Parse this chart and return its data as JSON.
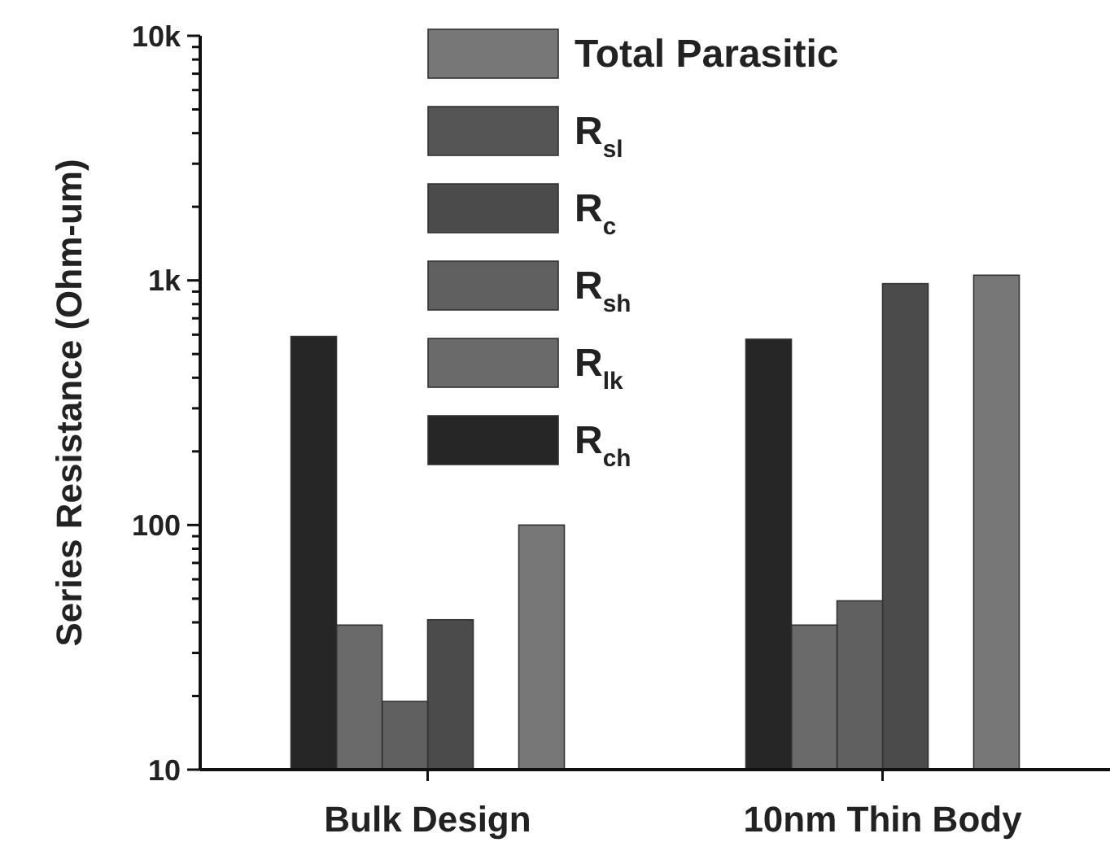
{
  "chart_data": {
    "type": "bar",
    "ylabel": "Series Resistance (Ohm-um)",
    "categories": [
      "Bulk Design",
      "10nm Thin Body"
    ],
    "series": [
      {
        "name": "Total Parasitic",
        "color": "#777777",
        "values": [
          100,
          1050
        ]
      },
      {
        "name": "R$_{sl}$",
        "color": "#555555",
        "values": [
          null,
          null
        ]
      },
      {
        "name": "R$_{c}$",
        "color": "#4b4b4b",
        "values": [
          41,
          970
        ]
      },
      {
        "name": "R$_{sh}$",
        "color": "#606060",
        "values": [
          19,
          49
        ]
      },
      {
        "name": "R$_{lk}$",
        "color": "#6a6a6a",
        "values": [
          39,
          39
        ]
      },
      {
        "name": "R$_{ch}$",
        "color": "#262626",
        "values": [
          590,
          575
        ]
      }
    ],
    "log": true,
    "ylim": [
      10,
      10000
    ],
    "yticks": [
      10,
      {
        "value": 20,
        "label": null
      },
      {
        "value": 30,
        "label": null
      },
      {
        "value": 40,
        "label": null
      },
      {
        "value": 50,
        "label": null
      },
      {
        "value": 60,
        "label": null
      },
      {
        "value": 70,
        "label": null
      },
      {
        "value": 80,
        "label": null
      },
      {
        "value": 90,
        "label": null
      },
      100,
      {
        "value": 200,
        "label": null
      },
      {
        "value": 300,
        "label": null
      },
      {
        "value": 400,
        "label": null
      },
      {
        "value": 500,
        "label": null
      },
      {
        "value": 600,
        "label": null
      },
      {
        "value": 700,
        "label": null
      },
      {
        "value": 800,
        "label": null
      },
      {
        "value": 900,
        "label": null
      },
      {
        "value": 1000,
        "label": "1k"
      },
      {
        "value": 2000,
        "label": null
      },
      {
        "value": 3000,
        "label": null
      },
      {
        "value": 4000,
        "label": null
      },
      {
        "value": 5000,
        "label": null
      },
      {
        "value": 6000,
        "label": null
      },
      {
        "value": 7000,
        "label": null
      },
      {
        "value": 8000,
        "label": null
      },
      {
        "value": 9000,
        "label": null
      },
      {
        "value": 10000,
        "label": "10k"
      }
    ],
    "grid": false,
    "legend": "top"
  }
}
